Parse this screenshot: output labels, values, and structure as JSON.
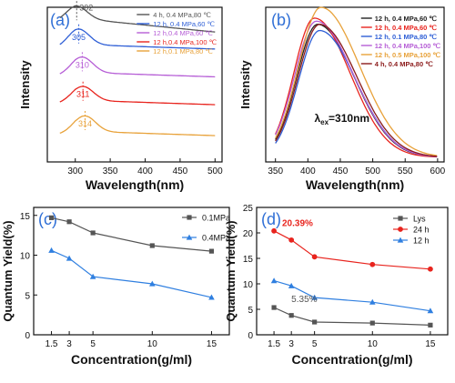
{
  "chart_data": [
    {
      "id": "a",
      "panel_label": "(a)",
      "type": "line",
      "panel_label_color": "#2f6fd6",
      "xlabel": "Wavelength(nm)",
      "ylabel": "Intensity",
      "xlim": [
        260,
        510
      ],
      "xticks": [
        "300",
        "350",
        "400",
        "450",
        "500"
      ],
      "series": [
        {
          "name": "4 h, 0.4 MPa,80 ℃",
          "color": "#555555",
          "peak_label": "302",
          "peak_x": 302
        },
        {
          "name": "12 h, 0.4 MPa,60 ℃",
          "color": "#2f5fd6",
          "peak_label": "305",
          "peak_x": 305
        },
        {
          "name": "12 h,0.4 MPa,60 ℃",
          "color": "#b65ed6",
          "peak_label": "310",
          "peak_x": 310
        },
        {
          "name": "12 h,0.4 MPa,100 ℃",
          "color": "#e8241e",
          "peak_label": "311",
          "peak_x": 311
        },
        {
          "name": "12 h,0.1 MPa,80 ℃",
          "color": "#e8a23a",
          "peak_label": "314",
          "peak_x": 314
        }
      ]
    },
    {
      "id": "b",
      "panel_label": "(b)",
      "type": "line",
      "panel_label_color": "#2f6fd6",
      "xlabel": "Wavelength(nm)",
      "ylabel": "Intensity",
      "xlim": [
        335,
        610
      ],
      "xticks": [
        "350",
        "400",
        "450",
        "500",
        "550",
        "600"
      ],
      "annotation": "λex=310nm",
      "series": [
        {
          "name": "12 h, 0.4 MPa,60 ℃",
          "color": "#222222",
          "peak_x": 415,
          "amp": 0.86,
          "w": 45
        },
        {
          "name": "12 h, 0.4 MPa,60 ℃",
          "color": "#e8241e",
          "peak_x": 410,
          "amp": 0.9,
          "w": 44
        },
        {
          "name": "12 h, 0.1 MPa,80 ℃",
          "color": "#2f5fd6",
          "peak_x": 418,
          "amp": 0.82,
          "w": 45
        },
        {
          "name": "12 h, 0.4 MPa,100 ℃",
          "color": "#b65ed6",
          "peak_x": 413,
          "amp": 0.88,
          "w": 46
        },
        {
          "name": "12 h, 0.5 MPa,100 ℃",
          "color": "#e8a23a",
          "peak_x": 420,
          "amp": 0.97,
          "w": 48
        },
        {
          "name": "4 h,  0.4 MPa,80 ℃",
          "color": "#8b1a1a",
          "peak_x": 418,
          "amp": 0.86,
          "w": 46
        }
      ]
    },
    {
      "id": "c",
      "panel_label": "(c)",
      "type": "line",
      "panel_label_color": "#2f6fd6",
      "xlabel": "Concentration(g/ml)",
      "ylabel": "Quantum Yield(%)",
      "xlim": [
        0,
        16.5
      ],
      "ylim": [
        0,
        16
      ],
      "xticks": [
        1.5,
        3,
        5,
        10,
        15
      ],
      "xtick_labels": [
        "1.5",
        "3",
        "5",
        "10",
        "15"
      ],
      "yticks": [
        0,
        5,
        10,
        15
      ],
      "x": [
        1.5,
        3,
        5,
        10,
        15
      ],
      "series": [
        {
          "name": "0.1MPa",
          "color": "#555555",
          "marker": "square",
          "values": [
            14.7,
            14.2,
            12.8,
            11.2,
            10.5
          ]
        },
        {
          "name": "0.4MPa",
          "color": "#2f7fe0",
          "marker": "triangle",
          "values": [
            10.6,
            9.6,
            7.3,
            6.4,
            4.7
          ]
        }
      ]
    },
    {
      "id": "d",
      "panel_label": "(d)",
      "type": "line",
      "panel_label_color": "#2f6fd6",
      "xlabel": "Concentration(g/ml)",
      "ylabel": "Quantum Yield(%)",
      "xlim": [
        0,
        16.5
      ],
      "ylim": [
        0,
        25
      ],
      "xticks": [
        1.5,
        3,
        5,
        10,
        15
      ],
      "xtick_labels": [
        "1.5",
        "3",
        "5",
        "10",
        "15"
      ],
      "yticks": [
        0,
        5,
        10,
        15,
        20,
        25
      ],
      "x": [
        1.5,
        3,
        5,
        10,
        15
      ],
      "annotations": [
        {
          "text": "20.39%",
          "color": "#e8241e",
          "x": 2.2,
          "y": 21.3
        },
        {
          "text": "5.35%",
          "color": "#555555",
          "x": 3.0,
          "y": 6.4
        }
      ],
      "series": [
        {
          "name": "Lys",
          "color": "#555555",
          "marker": "square",
          "values": [
            5.35,
            3.8,
            2.5,
            2.3,
            1.9
          ]
        },
        {
          "name": "24 h",
          "color": "#e8241e",
          "marker": "circle",
          "values": [
            20.39,
            18.6,
            15.3,
            13.8,
            12.9
          ]
        },
        {
          "name": "12 h",
          "color": "#2f7fe0",
          "marker": "triangle",
          "values": [
            10.6,
            9.6,
            7.3,
            6.4,
            4.7
          ]
        }
      ]
    }
  ]
}
